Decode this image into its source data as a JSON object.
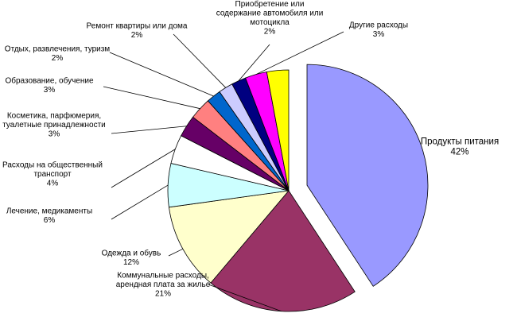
{
  "chart_data": {
    "type": "pie",
    "legend": "none",
    "slices": [
      {
        "label": [
          "Продукты питания"
        ],
        "pct": "42%",
        "value": 42,
        "color": "#9999ff"
      },
      {
        "label": [
          "Коммунальные расходы,",
          "арендная плата за жилье"
        ],
        "pct": "21%",
        "value": 21,
        "color": "#993366"
      },
      {
        "label": [
          "Одежда и обувь"
        ],
        "pct": "12%",
        "value": 12,
        "color": "#ffffcc"
      },
      {
        "label": [
          "Лечение, медикаменты"
        ],
        "pct": "6%",
        "value": 6,
        "color": "#ccffff"
      },
      {
        "label": [
          "Расходы на общественный",
          "транспорт"
        ],
        "pct": "4%",
        "value": 4,
        "color": "#ffffff"
      },
      {
        "label": [
          "Косметика, парфюмерия,",
          "туалетные принадлежности"
        ],
        "pct": "3%",
        "value": 3,
        "color": "#660066"
      },
      {
        "label": [
          "Образование, обучение"
        ],
        "pct": "3%",
        "value": 3,
        "color": "#ff8080"
      },
      {
        "label": [
          "Отдых, развлечения, туризм"
        ],
        "pct": "2%",
        "value": 2,
        "color": "#0066cc"
      },
      {
        "label": [
          "Ремонт квартиры или дома"
        ],
        "pct": "2%",
        "value": 2,
        "color": "#ccccff"
      },
      {
        "label": [
          "Приобретение или",
          "содержание автомобиля или",
          "мотоцикла"
        ],
        "pct": "2%",
        "value": 2,
        "color": "#000080"
      },
      {
        "label": [
          "Другие расходы"
        ],
        "pct": "3%",
        "value": 3,
        "color": "#ff00ff"
      },
      {
        "label": [],
        "pct": "",
        "value": 3,
        "color": "#ffff00"
      }
    ]
  }
}
